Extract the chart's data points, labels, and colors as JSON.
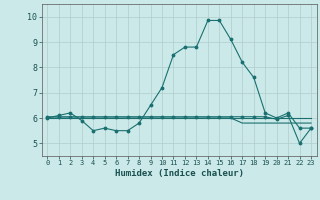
{
  "title": "",
  "xlabel": "Humidex (Indice chaleur)",
  "background_color": "#cce9e9",
  "grid_color": "#b0cccc",
  "line_color": "#1a7070",
  "xlim": [
    -0.5,
    23.5
  ],
  "ylim": [
    4.5,
    10.5
  ],
  "xticks": [
    0,
    1,
    2,
    3,
    4,
    5,
    6,
    7,
    8,
    9,
    10,
    11,
    12,
    13,
    14,
    15,
    16,
    17,
    18,
    19,
    20,
    21,
    22,
    23
  ],
  "yticks": [
    5,
    6,
    7,
    8,
    9,
    10
  ],
  "series": [
    {
      "x": [
        0,
        1,
        2,
        3,
        4,
        5,
        6,
        7,
        8,
        9,
        10,
        11,
        12,
        13,
        14,
        15,
        16,
        17,
        18,
        19,
        20,
        21,
        22,
        23
      ],
      "y": [
        6.0,
        6.1,
        6.2,
        5.9,
        5.5,
        5.6,
        5.5,
        5.5,
        5.8,
        6.5,
        7.2,
        8.5,
        8.8,
        8.8,
        9.85,
        9.85,
        9.1,
        8.2,
        7.6,
        6.2,
        6.0,
        6.2,
        5.6,
        5.6
      ],
      "marker": true
    },
    {
      "x": [
        0,
        1,
        2,
        3,
        4,
        5,
        6,
        7,
        8,
        9,
        10,
        11,
        12,
        13,
        14,
        15,
        16,
        17,
        18,
        19,
        20,
        21,
        22,
        23
      ],
      "y": [
        6.0,
        6.0,
        6.0,
        6.0,
        6.0,
        6.0,
        6.0,
        6.0,
        6.0,
        6.0,
        6.0,
        6.0,
        6.0,
        6.0,
        6.0,
        6.0,
        6.0,
        6.0,
        6.0,
        6.0,
        6.0,
        6.0,
        6.0,
        6.0
      ],
      "marker": false
    },
    {
      "x": [
        0,
        1,
        2,
        3,
        4,
        5,
        6,
        7,
        8,
        9,
        10,
        11,
        12,
        13,
        14,
        15,
        16,
        17,
        18,
        19,
        20,
        21,
        22,
        23
      ],
      "y": [
        6.0,
        6.0,
        6.0,
        6.0,
        6.0,
        6.0,
        6.0,
        6.0,
        6.0,
        6.0,
        6.0,
        6.0,
        6.0,
        6.0,
        6.0,
        6.0,
        6.0,
        5.8,
        5.8,
        5.8,
        5.8,
        5.8,
        5.8,
        5.8
      ],
      "marker": false
    },
    {
      "x": [
        0,
        1,
        2,
        3,
        4,
        5,
        6,
        7,
        8,
        9,
        10,
        11,
        12,
        13,
        14,
        15,
        16,
        17,
        18,
        19,
        20,
        21,
        22,
        23
      ],
      "y": [
        6.05,
        6.05,
        6.05,
        6.05,
        6.05,
        6.05,
        6.05,
        6.05,
        6.05,
        6.05,
        6.05,
        6.05,
        6.05,
        6.05,
        6.05,
        6.05,
        6.05,
        6.05,
        6.05,
        6.05,
        5.95,
        6.1,
        5.0,
        5.6
      ],
      "marker": true
    }
  ]
}
